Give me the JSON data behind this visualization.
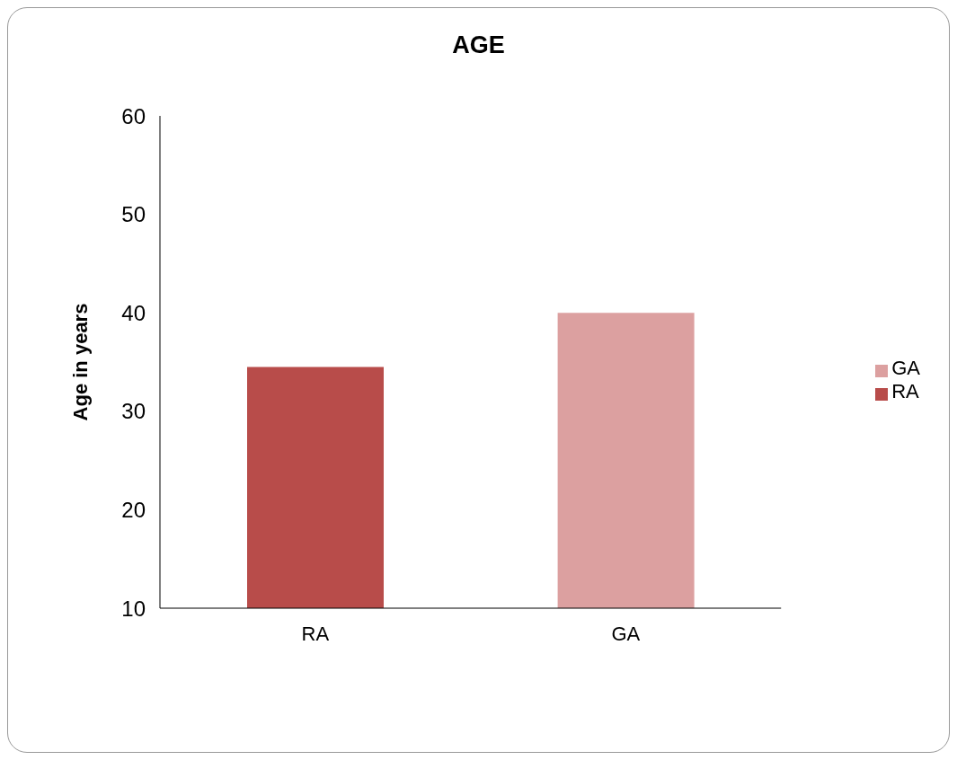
{
  "chart_data": {
    "type": "bar",
    "title": "AGE",
    "ylabel": "Age in years",
    "categories": [
      "RA",
      "GA"
    ],
    "stacked": true,
    "series": [
      {
        "name": "RA",
        "color": "#b84c4a",
        "values": [
          34.5,
          null
        ]
      },
      {
        "name": "GA",
        "color": "#dca0a0",
        "values": [
          null,
          40
        ]
      }
    ],
    "ylim": [
      10,
      60
    ],
    "yticks": [
      10,
      20,
      30,
      40,
      50,
      60
    ],
    "grid": false,
    "legend": "right"
  }
}
